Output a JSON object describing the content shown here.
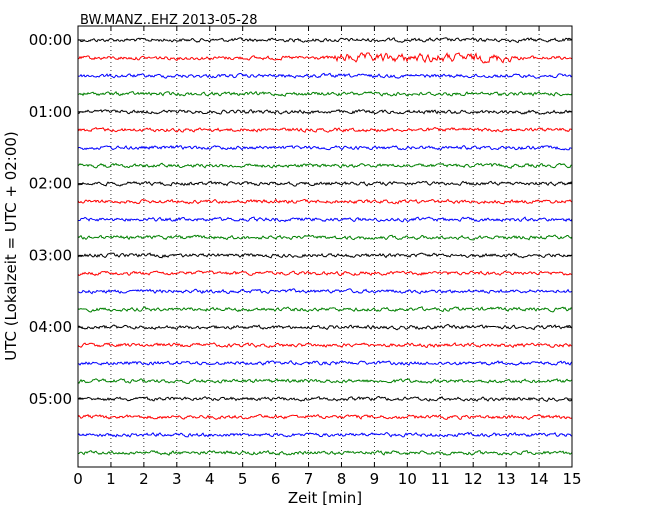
{
  "chart_data": {
    "type": "line",
    "title": "BW.MANZ..EHZ 2013-05-28",
    "xlabel": "Zeit  [min]",
    "ylabel": "UTC (Lokalzeit = UTC + 02:00)",
    "xlim": [
      0,
      15
    ],
    "x_ticks": [
      "0",
      "1",
      "2",
      "3",
      "4",
      "5",
      "6",
      "7",
      "8",
      "9",
      "10",
      "11",
      "12",
      "13",
      "14",
      "15"
    ],
    "y_ticks": [
      "00:00",
      "01:00",
      "02:00",
      "03:00",
      "04:00",
      "05:00"
    ],
    "minutes_per_line": 15,
    "lines_per_hour": 4,
    "line_count": 24,
    "color_cycle": [
      "#000000",
      "#ff0000",
      "#0000ff",
      "#008000"
    ],
    "grid": "vertical dotted at each minute",
    "high_amplitude_segment": {
      "line": 1,
      "from_min": 7.8,
      "to_min": 13.2
    }
  }
}
